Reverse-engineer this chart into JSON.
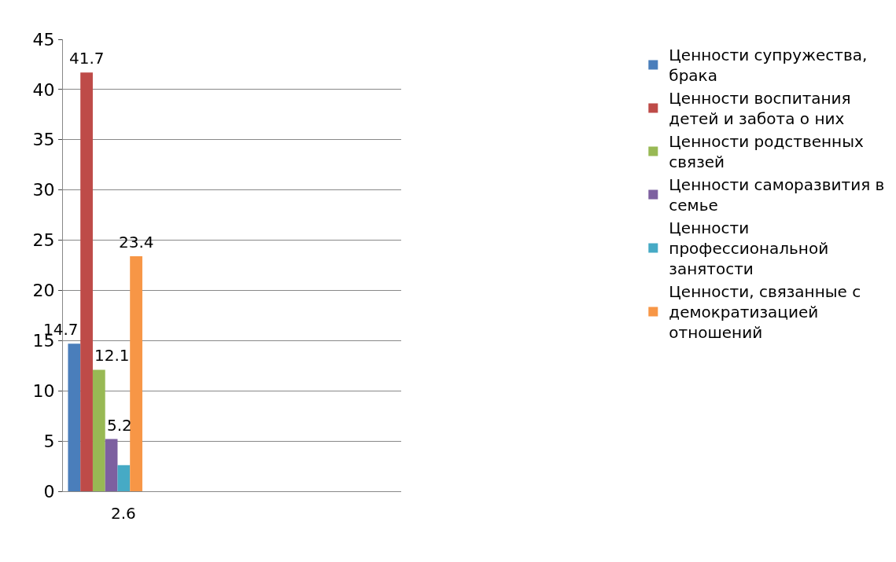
{
  "chart_data": {
    "type": "bar",
    "categories": [
      null,
      null,
      null,
      null
    ],
    "series": [
      {
        "name": "Ценности супружества, брака",
        "color": "#4a7ebb",
        "values": [
          14.7,
          null,
          null,
          null
        ]
      },
      {
        "name": "Ценности воспитания детей и забота о них",
        "color": "#be4b48",
        "values": [
          41.7,
          null,
          null,
          null
        ]
      },
      {
        "name": "Ценности родственных связей",
        "color": "#98b954",
        "values": [
          12.1,
          null,
          null,
          null
        ]
      },
      {
        "name": "Ценности саморазвития в семье",
        "color": "#7d60a0",
        "values": [
          5.2,
          null,
          null,
          null
        ]
      },
      {
        "name": "Ценности профессиональной занятости",
        "color": "#46aac5",
        "values": [
          2.6,
          null,
          null,
          null
        ]
      },
      {
        "name": "Ценности, связанные с демократизацией отношений",
        "color": "#f79646",
        "values": [
          23.4,
          null,
          null,
          null
        ]
      }
    ],
    "ylim": [
      0,
      45
    ],
    "yticks": [
      0,
      5,
      10,
      15,
      20,
      25,
      30,
      35,
      40,
      45
    ],
    "grid": "y",
    "legend": "right",
    "data_labels": true
  }
}
